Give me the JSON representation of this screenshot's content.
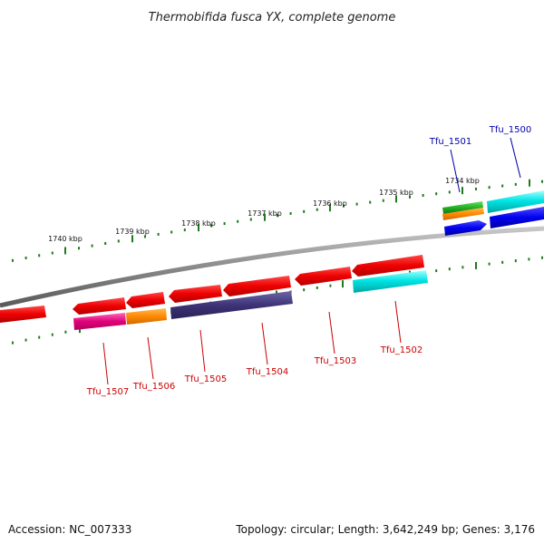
{
  "title": "Thermobifida fusca YX, complete genome",
  "footer": {
    "accession": "Accession: NC_007333",
    "summary": "Topology: circular; Length: 3,642,249 bp; Genes: 3,176"
  },
  "colors": {
    "backbone": "#8a8a8a",
    "tick": "#1e7a1e",
    "label_forward": "#0000aa",
    "label_reverse": "#cc0000"
  },
  "ticks": [
    {
      "label": "1740 kbp"
    },
    {
      "label": "1739 kbp"
    },
    {
      "label": "1738 kbp"
    },
    {
      "label": "1737 kbp"
    },
    {
      "label": "1736 kbp"
    },
    {
      "label": "1735 kbp"
    },
    {
      "label": "1734 kbp"
    }
  ],
  "genes_forward": [
    {
      "label": "Tfu_1501",
      "color": "#ff9900"
    },
    {
      "label": "Tfu_1500",
      "color": "#00cccc"
    }
  ],
  "genes_reverse": [
    {
      "label": "Tfu_1507",
      "color": "#e0007a"
    },
    {
      "label": "Tfu_1506",
      "color": "#ff8800"
    },
    {
      "label": "Tfu_1505",
      "color": "#3d3377"
    },
    {
      "label": "Tfu_1504",
      "color": "#3d3377"
    },
    {
      "label": "Tfu_1503",
      "color": "#dd0000"
    },
    {
      "label": "Tfu_1502",
      "color": "#00cccc"
    }
  ]
}
